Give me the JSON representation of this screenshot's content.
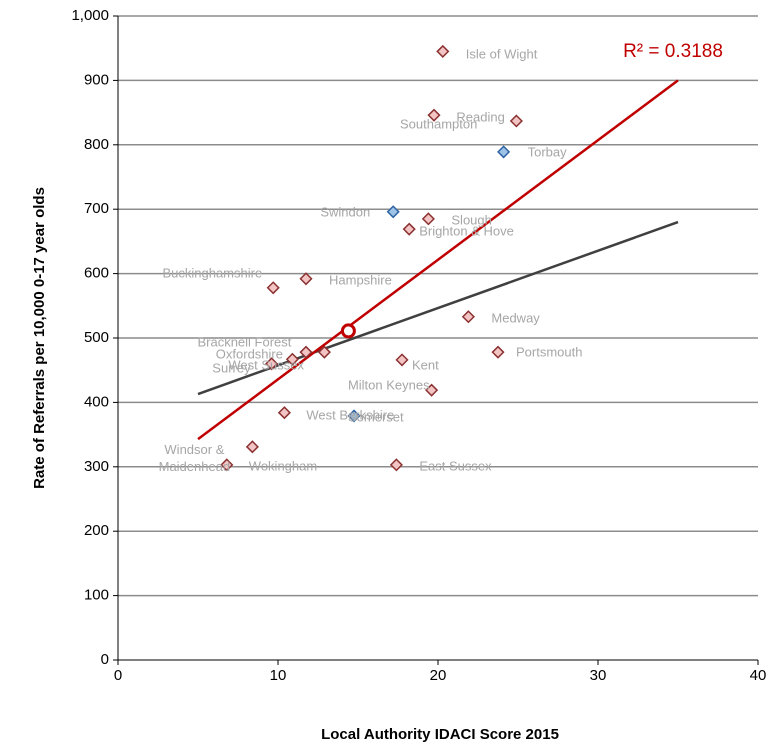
{
  "chart_data": {
    "type": "scatter",
    "x_label": "Local Authority IDACI Score 2015",
    "y_label": "Rate of Referrals per 10,000 0-17 year olds",
    "annotation": "R² = 0.3188",
    "annotation_color": "#c00000",
    "xlim": [
      0,
      40
    ],
    "xticks": [
      0,
      10,
      20,
      30,
      40
    ],
    "ylim": [
      0,
      1000
    ],
    "yticks": [
      0,
      100,
      200,
      300,
      400,
      500,
      600,
      700,
      800,
      900,
      {
        "value": 1000,
        "label": "1,000"
      }
    ],
    "grid": true,
    "labels": [
      "Isle of Wight",
      "Reading",
      "Southampton",
      "Torbay",
      "Swindon",
      "Slough",
      "Brighton & Hove",
      "Buckinghamshire",
      "Hampshire",
      "Medway",
      "Bracknell Forest",
      "Oxfordshire",
      "West Sussex",
      "Surrey",
      "Kent",
      "Portsmouth",
      "Milton Keynes",
      "West Berkshire",
      "Somerset",
      "Windsor & Maidenhead",
      "Wokingham",
      "East Sussex"
    ],
    "x": [
      20.3,
      24.9,
      19.75,
      24.1,
      17.2,
      19.4,
      18.2,
      9.7,
      11.75,
      21.9,
      12.9,
      11.75,
      10.9,
      9.6,
      17.75,
      23.75,
      19.6,
      10.4,
      14.75,
      8.4,
      6.8,
      17.4
    ],
    "values": [
      945,
      837,
      846,
      789,
      696,
      685,
      669,
      578,
      592,
      533,
      478,
      478,
      467,
      460,
      466,
      478,
      419,
      384,
      379,
      331,
      303,
      303
    ],
    "colors": [
      "#f2c4c4",
      "#f2c4c4",
      "#f2c4c4",
      "#9dc3e6",
      "#9dc3e6",
      "#f2c4c4",
      "#f2c4c4",
      "#f2c4c4",
      "#f2c4c4",
      "#f2c4c4",
      "#f2c4c4",
      "#f2c4c4",
      "#f2c4c4",
      "#f2c4c4",
      "#f2c4c4",
      "#f2c4c4",
      "#f2c4c4",
      "#f2c4c4",
      "#9dc3e6",
      "#f2c4c4",
      "#f2c4c4",
      "#f2c4c4"
    ],
    "edge_colors": [
      "#8b3030",
      "#8b3030",
      "#8b3030",
      "#2e62a4",
      "#2e62a4",
      "#8b3030",
      "#8b3030",
      "#8b3030",
      "#8b3030",
      "#8b3030",
      "#8b3030",
      "#8b3030",
      "#8b3030",
      "#8b3030",
      "#8b3030",
      "#8b3030",
      "#8b3030",
      "#8b3030",
      "#2e62a4",
      "#8b3030",
      "#8b3030",
      "#8b3030"
    ],
    "lines": [
      {
        "x": [
          5,
          35
        ],
        "values": [
          413,
          680
        ],
        "color": "#404040"
      },
      {
        "x": [
          5,
          35
        ],
        "values": [
          343,
          900
        ],
        "color": "#c00000"
      }
    ],
    "highlight": {
      "x": 14.4,
      "y": 511,
      "color": "#c00000"
    }
  }
}
